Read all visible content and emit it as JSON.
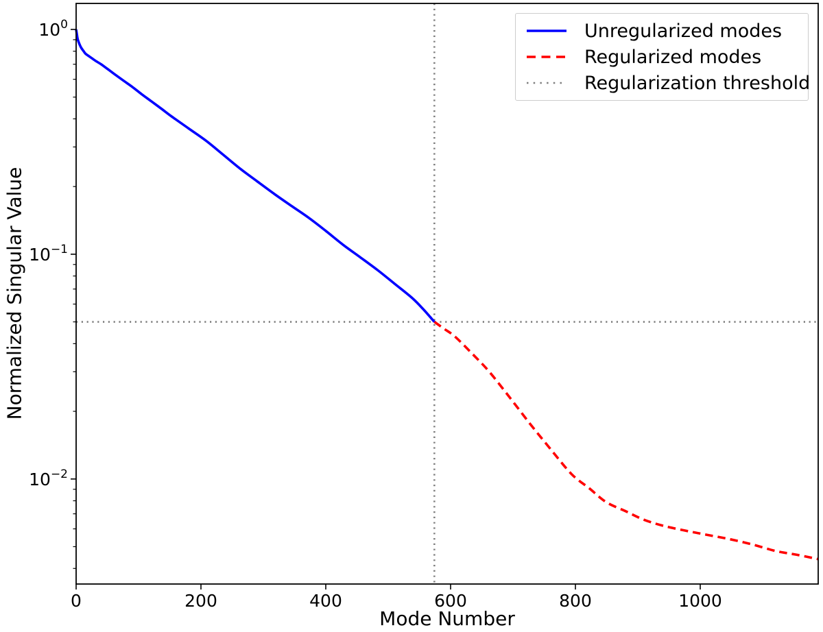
{
  "chart_data": {
    "type": "line",
    "title": "",
    "xlabel": "Mode Number",
    "ylabel": "Normalized Singular Value",
    "x_scale": "linear",
    "y_scale": "log",
    "xlim": [
      0,
      1189
    ],
    "ylim": [
      0.00341,
      1.305
    ],
    "x_ticks": [
      0,
      200,
      400,
      600,
      800,
      1000
    ],
    "y_ticks": [
      {
        "value": 1,
        "base": "10",
        "exp": "0"
      },
      {
        "value": 0.1,
        "base": "10",
        "exp": "−1"
      },
      {
        "value": 0.01,
        "base": "10",
        "exp": "−2"
      }
    ],
    "grid": false,
    "legend_position": "upper right",
    "threshold": {
      "mode": 574,
      "value": 0.05
    },
    "series": [
      {
        "name": "Unregularized modes",
        "color": "#0000ff",
        "style": "solid",
        "x": [
          0,
          1,
          2,
          3,
          5,
          8,
          12,
          15,
          20,
          25,
          32,
          40,
          50,
          60,
          75,
          90,
          105,
          120,
          137,
          153,
          180,
          208,
          235,
          263,
          290,
          318,
          345,
          373,
          400,
          428,
          455,
          483,
          510,
          538,
          556,
          574
        ],
        "y": [
          1.0,
          0.96,
          0.92,
          0.895,
          0.865,
          0.83,
          0.8,
          0.78,
          0.762,
          0.745,
          0.722,
          0.7,
          0.668,
          0.637,
          0.594,
          0.555,
          0.515,
          0.48,
          0.443,
          0.41,
          0.363,
          0.32,
          0.278,
          0.24,
          0.211,
          0.185,
          0.164,
          0.145,
          0.127,
          0.11,
          0.097,
          0.085,
          0.074,
          0.064,
          0.057,
          0.05
        ]
      },
      {
        "name": "Regularized modes",
        "color": "#ff0000",
        "style": "dashed",
        "x": [
          574,
          590,
          607,
          635,
          662,
          695,
          728,
          760,
          794,
          822,
          849,
          880,
          909,
          940,
          975,
          1010,
          1047,
          1085,
          1121,
          1155,
          1189
        ],
        "y": [
          0.05,
          0.0465,
          0.043,
          0.036,
          0.03,
          0.023,
          0.0175,
          0.0136,
          0.0105,
          0.0091,
          0.0079,
          0.0072,
          0.0066,
          0.0062,
          0.0059,
          0.00565,
          0.0054,
          0.0051,
          0.00478,
          0.0046,
          0.0044
        ]
      },
      {
        "name": "Regularization threshold",
        "color": "#7f7f7f",
        "style": "dotted"
      }
    ]
  }
}
